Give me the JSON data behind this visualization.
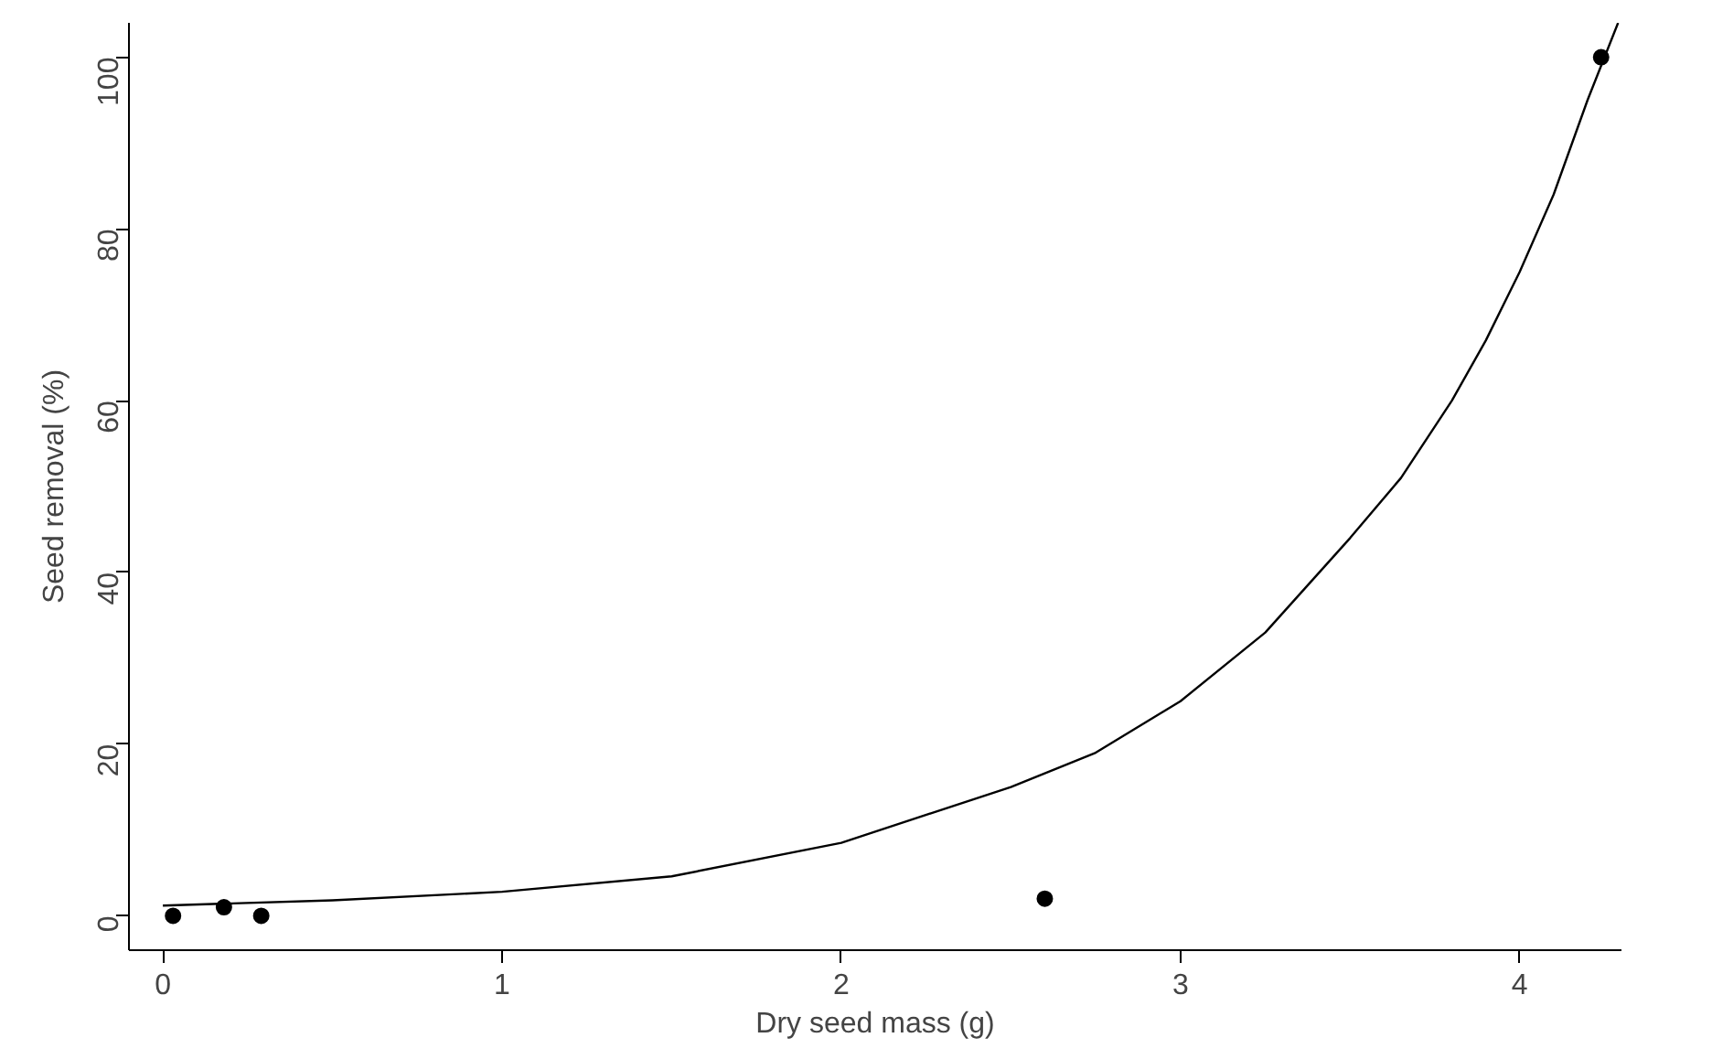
{
  "chart_data": {
    "type": "scatter",
    "xlabel": "Dry seed mass (g)",
    "ylabel": "Seed removal (%)",
    "xlim": [
      -0.1,
      4.3
    ],
    "ylim": [
      -4,
      104
    ],
    "xticks": [
      0,
      1,
      2,
      3,
      4
    ],
    "yticks": [
      0,
      20,
      40,
      60,
      80,
      100
    ],
    "grid": false,
    "series": [
      {
        "color": "#000000",
        "marker": "circle",
        "x": [
          0.03,
          0.18,
          0.29,
          2.6,
          4.24
        ],
        "values": [
          0,
          1,
          0,
          2,
          100
        ]
      },
      {
        "type": "line",
        "color": "#000000",
        "marker": "none",
        "x": [
          0,
          0.5,
          1,
          1.5,
          2,
          2.5,
          2.75,
          3,
          3.25,
          3.5,
          3.65,
          3.8,
          3.9,
          4,
          4.1,
          4.2,
          4.29
        ],
        "values": [
          1.2,
          1.8,
          2.8,
          4.6,
          8.5,
          15,
          19,
          25,
          33,
          44,
          51,
          60,
          67,
          75,
          84,
          95,
          104
        ]
      }
    ]
  }
}
